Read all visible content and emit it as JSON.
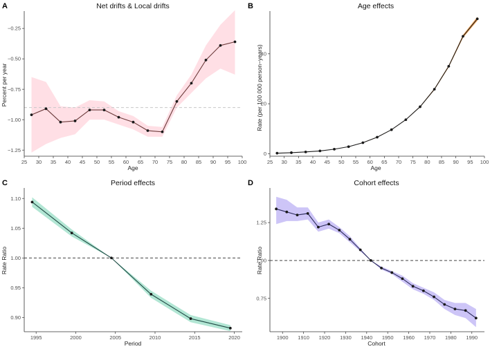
{
  "chart_data": [
    {
      "letter": "A",
      "type": "line",
      "title": "Net drifts & Local drifts",
      "xlabel": "Age",
      "ylabel": "Percent per year",
      "xlim": [
        25,
        100
      ],
      "ylim": [
        -1.3,
        -0.13
      ],
      "xticks": [
        25,
        30,
        35,
        40,
        45,
        50,
        55,
        60,
        65,
        70,
        75,
        80,
        85,
        90,
        95,
        100
      ],
      "yticks": [
        -1.25,
        -1.0,
        -0.75,
        -0.5,
        -0.25
      ],
      "ytick_labels": [
        "−1.25",
        "−1.00",
        "−0.75",
        "−0.50",
        "−0.25"
      ],
      "reference_line": -0.9,
      "reference_style": "dashed-light",
      "x": [
        27.5,
        32.5,
        37.5,
        42.5,
        47.5,
        52.5,
        57.5,
        62.5,
        67.5,
        72.5,
        77.5,
        82.5,
        87.5,
        92.5,
        97.5
      ],
      "values": [
        -0.96,
        -0.91,
        -1.02,
        -1.01,
        -0.92,
        -0.92,
        -0.98,
        -1.02,
        -1.09,
        -1.1,
        -0.85,
        -0.7,
        -0.51,
        -0.39,
        -0.36
      ],
      "lower": [
        -1.27,
        -1.2,
        -1.15,
        -1.12,
        -1.0,
        -1.0,
        -1.04,
        -1.08,
        -1.14,
        -1.14,
        -0.9,
        -0.78,
        -0.66,
        -0.58,
        -0.63
      ],
      "upper": [
        -0.65,
        -0.69,
        -0.89,
        -0.9,
        -0.84,
        -0.85,
        -0.93,
        -0.97,
        -1.05,
        -1.06,
        -0.8,
        -0.63,
        -0.39,
        -0.22,
        -0.1
      ],
      "line_color": "#6b3a3a",
      "band_color": "#ffc0cb"
    },
    {
      "letter": "B",
      "type": "line",
      "title": "Age effects",
      "xlabel": "Age",
      "ylabel": "Rate (per 100 000 person−years)",
      "xlim": [
        25,
        100
      ],
      "ylim": [
        -1,
        56
      ],
      "xticks": [
        25,
        30,
        35,
        40,
        45,
        50,
        55,
        60,
        65,
        70,
        75,
        80,
        85,
        90,
        95,
        100
      ],
      "yticks": [
        0,
        20,
        40
      ],
      "ytick_labels": [
        "0",
        "20",
        "40"
      ],
      "reference_line": null,
      "x": [
        27.5,
        32.5,
        37.5,
        42.5,
        47.5,
        52.5,
        57.5,
        62.5,
        67.5,
        72.5,
        77.5,
        82.5,
        87.5,
        92.5,
        97.5
      ],
      "values": [
        0.2,
        0.4,
        0.7,
        1.1,
        1.8,
        2.8,
        4.4,
        6.6,
        9.6,
        13.6,
        18.8,
        25.8,
        35.0,
        47.0,
        54.0
      ],
      "lower": [
        0.2,
        0.4,
        0.7,
        1.1,
        1.8,
        2.8,
        4.3,
        6.5,
        9.5,
        13.5,
        18.6,
        25.5,
        34.6,
        46.4,
        53.2
      ],
      "upper": [
        0.2,
        0.4,
        0.7,
        1.1,
        1.8,
        2.8,
        4.5,
        6.7,
        9.7,
        13.7,
        19.0,
        26.1,
        35.4,
        47.6,
        54.8
      ],
      "line_color": "#1a1a1a",
      "band_color": "#f08a24"
    },
    {
      "letter": "C",
      "type": "line",
      "title": "Period effects",
      "xlabel": "Period",
      "ylabel": "Rate Ratio",
      "xlim": [
        1993.5,
        2021
      ],
      "ylim": [
        0.876,
        1.113
      ],
      "xticks": [
        1995,
        2000,
        2005,
        2010,
        2015,
        2020
      ],
      "yticks": [
        0.9,
        0.95,
        1.0,
        1.05,
        1.1
      ],
      "ytick_labels": [
        "0.90",
        "0.95",
        "1.00",
        "1.05",
        "1.10"
      ],
      "reference_line": 1.0,
      "reference_style": "dashed-dark",
      "x": [
        1994.5,
        1999.5,
        2004.5,
        2009.5,
        2014.5,
        2019.5
      ],
      "values": [
        1.094,
        1.042,
        1.0,
        0.939,
        0.898,
        0.882
      ],
      "lower": [
        1.086,
        1.036,
        1.0,
        0.933,
        0.892,
        0.877
      ],
      "upper": [
        1.102,
        1.048,
        1.0,
        0.945,
        0.904,
        0.887
      ],
      "line_color": "#1f4a44",
      "band_color": "#66cdaa"
    },
    {
      "letter": "D",
      "type": "line",
      "title": "Cohort effects",
      "xlabel": "Cohort",
      "ylabel": "Rate Ratio",
      "xlim": [
        1894,
        1996
      ],
      "ylim": [
        0.53,
        1.46
      ],
      "xticks": [
        1900,
        1910,
        1920,
        1930,
        1940,
        1950,
        1960,
        1970,
        1980,
        1990
      ],
      "yticks": [
        0.75,
        1.0,
        1.25
      ],
      "ytick_labels": [
        "0.75",
        "1.00",
        "1.25"
      ],
      "reference_line": 1.0,
      "reference_style": "dashed-dark",
      "x": [
        1897,
        1902,
        1907,
        1912,
        1917,
        1922,
        1927,
        1932,
        1937,
        1942,
        1947,
        1952,
        1957,
        1962,
        1967,
        1972,
        1977,
        1982,
        1987,
        1992
      ],
      "values": [
        1.34,
        1.32,
        1.3,
        1.31,
        1.22,
        1.24,
        1.2,
        1.14,
        1.07,
        1.0,
        0.95,
        0.92,
        0.88,
        0.83,
        0.8,
        0.76,
        0.71,
        0.68,
        0.67,
        0.62
      ],
      "lower": [
        1.24,
        1.26,
        1.26,
        1.27,
        1.19,
        1.21,
        1.18,
        1.12,
        1.06,
        1.0,
        0.94,
        0.91,
        0.86,
        0.81,
        0.78,
        0.74,
        0.68,
        0.64,
        0.62,
        0.56
      ],
      "upper": [
        1.42,
        1.4,
        1.35,
        1.35,
        1.25,
        1.27,
        1.22,
        1.16,
        1.08,
        1.0,
        0.96,
        0.93,
        0.9,
        0.85,
        0.82,
        0.79,
        0.74,
        0.72,
        0.72,
        0.68
      ],
      "line_color": "#2a2a5a",
      "band_color": "#9b8cf0"
    }
  ]
}
